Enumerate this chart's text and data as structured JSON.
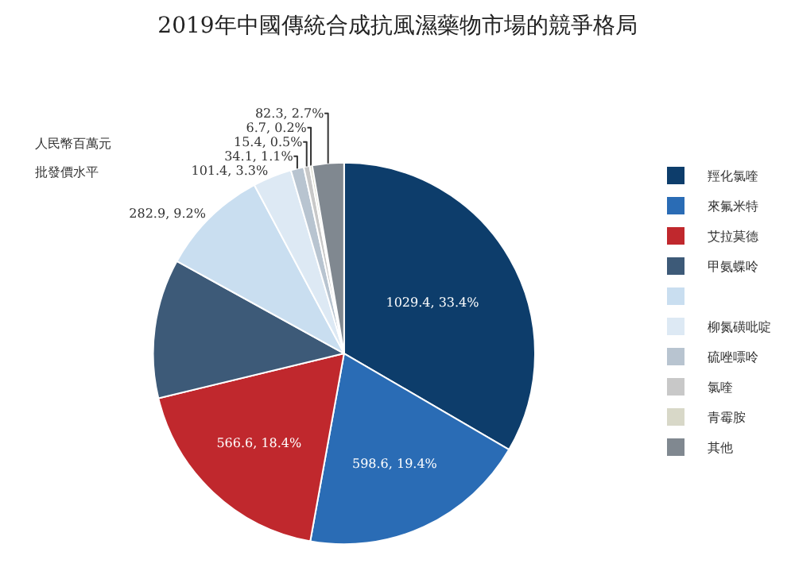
{
  "chart_data": {
    "type": "pie",
    "title": "2019年中國傳統合成抗風濕藥物市場的競爭格局",
    "annotations": [
      "人民幣百萬元",
      "批發價水平"
    ],
    "categories": [
      "羥化氯喹",
      "來氟米特",
      "艾拉莫德",
      "甲氨蝶呤",
      null,
      "柳氮磺吡啶",
      "硫唑嘌呤",
      "氯喹",
      "青霉胺",
      "其他"
    ],
    "values": [
      1029.4,
      598.6,
      566.6,
      364,
      282.9,
      101.4,
      34.1,
      15.4,
      6.7,
      82.3
    ],
    "value_labels": [
      "1029.4, 33.4%",
      "598.6, 19.4%",
      "566.6, 18.4%",
      null,
      "282.9, 9.2%",
      "101.4, 3.3%",
      "34.1, 1.1%",
      "15.4, 0.5%",
      "6.7, 0.2%",
      "82.3, 2.7%"
    ],
    "colors": [
      "#0d3d6b",
      "#2a6cb5",
      "#c0282d",
      "#3d5a78",
      "#c9def0",
      "#dde9f4",
      "#b8c4d0",
      "#c8c8c8",
      "#d8d8c8",
      "#808890"
    ],
    "legend": "right"
  }
}
